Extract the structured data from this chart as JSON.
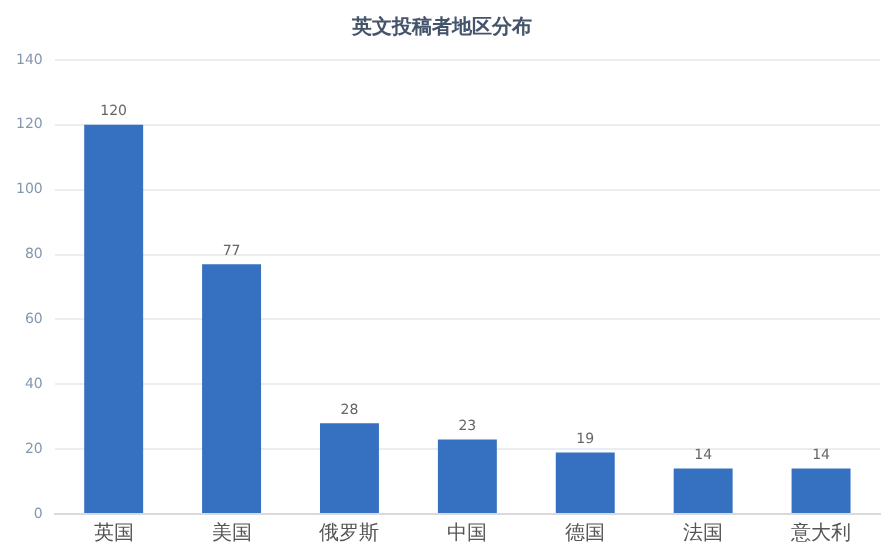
{
  "chart_data": {
    "type": "bar",
    "title": "英文投稿者地区分布",
    "categories": [
      "英国",
      "美国",
      "俄罗斯",
      "中国",
      "德国",
      "法国",
      "意大利"
    ],
    "values": [
      120,
      77,
      28,
      23,
      19,
      14,
      14
    ],
    "color": "#3670c0",
    "ylim": [
      0,
      140
    ],
    "yticks": [
      0,
      20,
      40,
      60,
      80,
      100,
      120,
      140
    ],
    "grid": "y",
    "data_labels": true,
    "legend": false
  }
}
